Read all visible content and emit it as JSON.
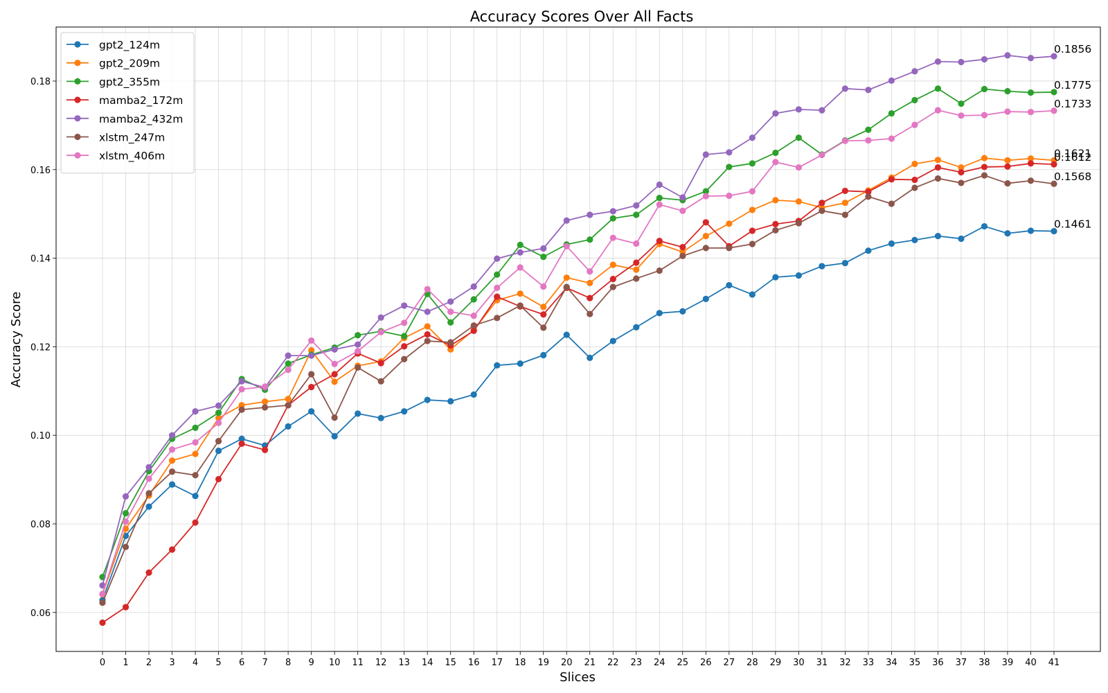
{
  "chart_data": {
    "type": "line",
    "title": "Accuracy Scores Over All Facts",
    "xlabel": "Slices",
    "ylabel": "Accuracy Score",
    "x": [
      0,
      1,
      2,
      3,
      4,
      5,
      6,
      7,
      8,
      9,
      10,
      11,
      12,
      13,
      14,
      15,
      16,
      17,
      18,
      19,
      20,
      21,
      22,
      23,
      24,
      25,
      26,
      27,
      28,
      29,
      30,
      31,
      32,
      33,
      34,
      35,
      36,
      37,
      38,
      39,
      40,
      41
    ],
    "xlim": [
      -2,
      43
    ],
    "ylim": [
      0.0512,
      0.1922
    ],
    "yticks": [
      0.06,
      0.08,
      0.1,
      0.12,
      0.14,
      0.16,
      0.18
    ],
    "ytick_labels": [
      "0.06",
      "0.08",
      "0.10",
      "0.12",
      "0.14",
      "0.16",
      "0.18"
    ],
    "grid": true,
    "legend_position": "top-left",
    "series": [
      {
        "name": "gpt2_124m",
        "color": "#1f77b4",
        "end_label": "0.1461",
        "values": [
          0.0628,
          0.0773,
          0.0839,
          0.0889,
          0.0863,
          0.0965,
          0.0992,
          0.0977,
          0.102,
          0.1054,
          0.0998,
          0.1049,
          0.1039,
          0.1054,
          0.108,
          0.1077,
          0.1092,
          0.1158,
          0.1162,
          0.1181,
          0.1227,
          0.1175,
          0.1213,
          0.1244,
          0.1276,
          0.128,
          0.1308,
          0.1339,
          0.1318,
          0.1357,
          0.1361,
          0.1382,
          0.1389,
          0.1417,
          0.1433,
          0.1441,
          0.145,
          0.1444,
          0.1472,
          0.1456,
          0.1462,
          0.1461
        ]
      },
      {
        "name": "gpt2_209m",
        "color": "#ff7f0e",
        "end_label": "0.1621",
        "values": [
          0.0641,
          0.0789,
          0.0864,
          0.0943,
          0.0958,
          0.1039,
          0.1068,
          0.1076,
          0.1082,
          0.1192,
          0.1121,
          0.1157,
          0.1167,
          0.122,
          0.1246,
          0.1194,
          0.1238,
          0.1305,
          0.132,
          0.129,
          0.1356,
          0.1344,
          0.1385,
          0.1374,
          0.1432,
          0.1414,
          0.145,
          0.1478,
          0.1509,
          0.1531,
          0.1528,
          0.1514,
          0.1525,
          0.1553,
          0.1582,
          0.1613,
          0.1622,
          0.1605,
          0.1626,
          0.1621,
          0.1625,
          0.1621
        ]
      },
      {
        "name": "gpt2_355m",
        "color": "#2ca02c",
        "end_label": "0.1775",
        "values": [
          0.068,
          0.0824,
          0.0919,
          0.0992,
          0.1017,
          0.1051,
          0.1127,
          0.1103,
          0.1162,
          0.1182,
          0.1198,
          0.1226,
          0.1235,
          0.1224,
          0.1319,
          0.1255,
          0.1307,
          0.1363,
          0.143,
          0.1403,
          0.1431,
          0.1442,
          0.149,
          0.1498,
          0.1536,
          0.1531,
          0.1551,
          0.1606,
          0.1614,
          0.1638,
          0.1672,
          0.1634,
          0.1666,
          0.169,
          0.1727,
          0.1757,
          0.1783,
          0.1749,
          0.1782,
          0.1777,
          0.1774,
          0.1775
        ]
      },
      {
        "name": "mamba2_172m",
        "color": "#d62728",
        "end_label": "0.1612",
        "values": [
          0.0577,
          0.0612,
          0.069,
          0.0742,
          0.0803,
          0.0901,
          0.0981,
          0.0967,
          0.1068,
          0.1109,
          0.1138,
          0.1185,
          0.1163,
          0.1201,
          0.1228,
          0.1203,
          0.1236,
          0.1313,
          0.1291,
          0.1273,
          0.1333,
          0.131,
          0.1353,
          0.139,
          0.1439,
          0.1425,
          0.1481,
          0.1427,
          0.1462,
          0.1477,
          0.1484,
          0.1525,
          0.1552,
          0.155,
          0.1578,
          0.1577,
          0.1605,
          0.1594,
          0.1606,
          0.1607,
          0.1614,
          0.1612
        ]
      },
      {
        "name": "mamba2_432m",
        "color": "#9467bd",
        "end_label": "0.1856",
        "values": [
          0.0661,
          0.0862,
          0.0928,
          0.1,
          0.1054,
          0.1067,
          0.1122,
          0.1108,
          0.118,
          0.118,
          0.1194,
          0.1205,
          0.1266,
          0.1293,
          0.1279,
          0.1302,
          0.1336,
          0.1399,
          0.1413,
          0.1422,
          0.1485,
          0.1498,
          0.1506,
          0.1519,
          0.1566,
          0.1537,
          0.1634,
          0.1639,
          0.1672,
          0.1727,
          0.1736,
          0.1734,
          0.1783,
          0.178,
          0.1801,
          0.1822,
          0.1844,
          0.1843,
          0.1849,
          0.1858,
          0.1852,
          0.1856
        ]
      },
      {
        "name": "xlstm_247m",
        "color": "#8c564b",
        "end_label": "0.1568",
        "values": [
          0.0622,
          0.0748,
          0.0869,
          0.0918,
          0.091,
          0.0987,
          0.1058,
          0.1063,
          0.1068,
          0.1138,
          0.104,
          0.1153,
          0.1122,
          0.1172,
          0.1213,
          0.121,
          0.1248,
          0.1265,
          0.1293,
          0.1243,
          0.1335,
          0.1274,
          0.1335,
          0.1354,
          0.1372,
          0.1405,
          0.1423,
          0.1423,
          0.1432,
          0.1463,
          0.1479,
          0.1507,
          0.1498,
          0.1539,
          0.1523,
          0.1559,
          0.158,
          0.157,
          0.1587,
          0.1569,
          0.1575,
          0.1568
        ]
      },
      {
        "name": "xlstm_406m",
        "color": "#e377c2",
        "end_label": "0.1733",
        "values": [
          0.0642,
          0.0805,
          0.0902,
          0.0968,
          0.0984,
          0.1028,
          0.1104,
          0.111,
          0.1148,
          0.1214,
          0.1161,
          0.119,
          0.1233,
          0.1254,
          0.133,
          0.1279,
          0.127,
          0.1333,
          0.1379,
          0.1336,
          0.1427,
          0.137,
          0.1446,
          0.1433,
          0.1521,
          0.1507,
          0.154,
          0.1541,
          0.1551,
          0.1617,
          0.1605,
          0.1633,
          0.1665,
          0.1666,
          0.167,
          0.1701,
          0.1734,
          0.1722,
          0.1723,
          0.1731,
          0.173,
          0.1733
        ]
      }
    ]
  }
}
